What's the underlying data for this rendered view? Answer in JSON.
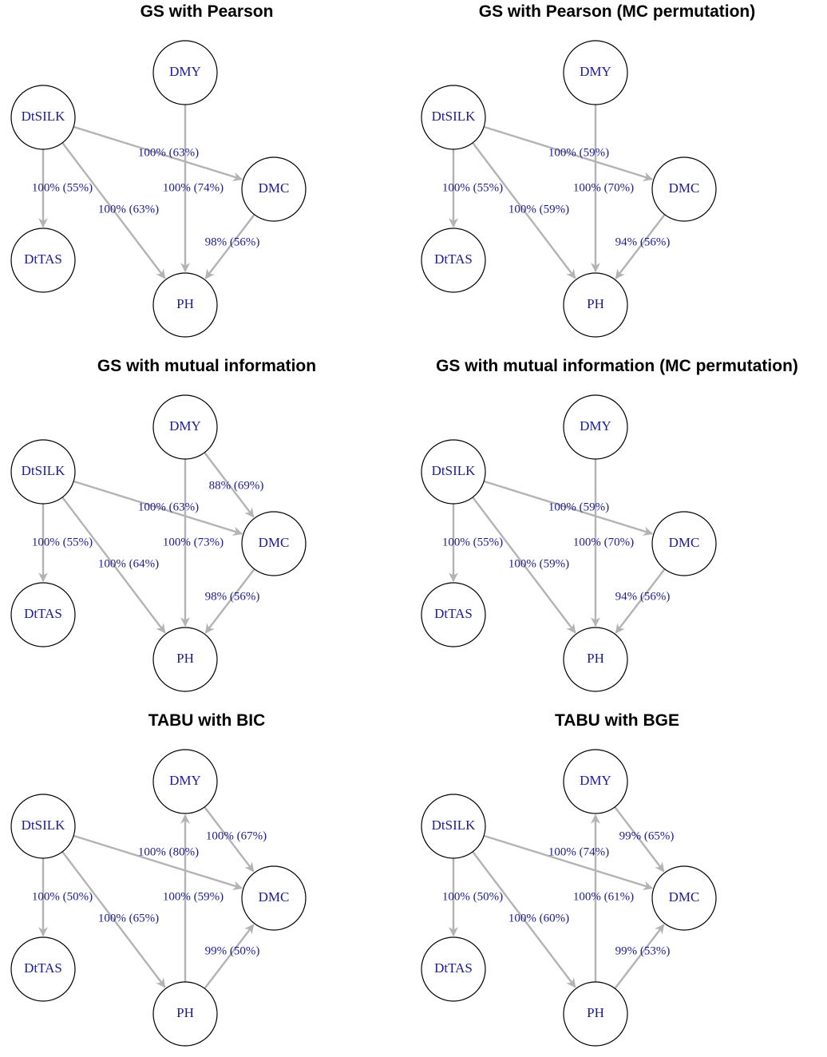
{
  "nodes": {
    "DMY": "DMY",
    "DtSILK": "DtSILK",
    "DMC": "DMC",
    "DtTAS": "DtTAS",
    "PH": "PH"
  },
  "panels": [
    {
      "title": "GS with Pearson",
      "edges": [
        {
          "id": "e1",
          "from": "DtSILK",
          "to": "DMC",
          "label": "100% (63%)"
        },
        {
          "id": "e2",
          "from": "DMY",
          "to": "PH",
          "label": "100% (74%)"
        },
        {
          "id": "e3",
          "from": "DtSILK",
          "to": "DtTAS",
          "label": "100% (55%)"
        },
        {
          "id": "e4",
          "from": "DtSILK",
          "to": "PH",
          "label": "100% (63%)"
        },
        {
          "id": "e5",
          "from": "DMC",
          "to": "PH",
          "label": "98% (56%)"
        }
      ]
    },
    {
      "title": "GS with Pearson (MC permutation)",
      "edges": [
        {
          "id": "e1",
          "from": "DtSILK",
          "to": "DMC",
          "label": "100% (59%)"
        },
        {
          "id": "e2",
          "from": "DMY",
          "to": "PH",
          "label": "100% (70%)"
        },
        {
          "id": "e3",
          "from": "DtSILK",
          "to": "DtTAS",
          "label": "100% (55%)"
        },
        {
          "id": "e4",
          "from": "DtSILK",
          "to": "PH",
          "label": "100% (59%)"
        },
        {
          "id": "e5",
          "from": "DMC",
          "to": "PH",
          "label": "94% (56%)"
        }
      ]
    },
    {
      "title": "GS with mutual information",
      "edges": [
        {
          "id": "e6",
          "from": "DMY",
          "to": "DMC",
          "label": "88% (69%)"
        },
        {
          "id": "e1",
          "from": "DtSILK",
          "to": "DMC",
          "label": "100% (63%)"
        },
        {
          "id": "e2",
          "from": "DMY",
          "to": "PH",
          "label": "100% (73%)"
        },
        {
          "id": "e3",
          "from": "DtSILK",
          "to": "DtTAS",
          "label": "100% (55%)"
        },
        {
          "id": "e4",
          "from": "DtSILK",
          "to": "PH",
          "label": "100% (64%)"
        },
        {
          "id": "e5",
          "from": "DMC",
          "to": "PH",
          "label": "98% (56%)"
        }
      ]
    },
    {
      "title": "GS with mutual information (MC permutation)",
      "edges": [
        {
          "id": "e1",
          "from": "DtSILK",
          "to": "DMC",
          "label": "100% (59%)"
        },
        {
          "id": "e2",
          "from": "DMY",
          "to": "PH",
          "label": "100% (70%)"
        },
        {
          "id": "e3",
          "from": "DtSILK",
          "to": "DtTAS",
          "label": "100% (55%)"
        },
        {
          "id": "e4",
          "from": "DtSILK",
          "to": "PH",
          "label": "100% (59%)"
        },
        {
          "id": "e5",
          "from": "DMC",
          "to": "PH",
          "label": "94% (56%)"
        }
      ]
    },
    {
      "title": "TABU with BIC",
      "edges": [
        {
          "id": "e6",
          "from": "DMY",
          "to": "DMC",
          "label": "100% (67%)"
        },
        {
          "id": "e1",
          "from": "DtSILK",
          "to": "DMC",
          "label": "100% (80%)"
        },
        {
          "id": "e2",
          "from": "PH",
          "to": "DMY",
          "label": "100% (59%)"
        },
        {
          "id": "e3",
          "from": "DtSILK",
          "to": "DtTAS",
          "label": "100% (50%)"
        },
        {
          "id": "e4",
          "from": "DtSILK",
          "to": "PH",
          "label": "100% (65%)"
        },
        {
          "id": "e5",
          "from": "PH",
          "to": "DMC",
          "label": "99% (50%)"
        }
      ]
    },
    {
      "title": "TABU with BGE",
      "edges": [
        {
          "id": "e6",
          "from": "DMY",
          "to": "DMC",
          "label": "99% (65%)"
        },
        {
          "id": "e1",
          "from": "DtSILK",
          "to": "DMC",
          "label": "100% (74%)"
        },
        {
          "id": "e2",
          "from": "PH",
          "to": "DMY",
          "label": "100% (61%)"
        },
        {
          "id": "e3",
          "from": "DtSILK",
          "to": "DtTAS",
          "label": "100% (50%)"
        },
        {
          "id": "e4",
          "from": "DtSILK",
          "to": "PH",
          "label": "100% (60%)"
        },
        {
          "id": "e5",
          "from": "PH",
          "to": "DMC",
          "label": "99% (53%)"
        }
      ]
    }
  ]
}
